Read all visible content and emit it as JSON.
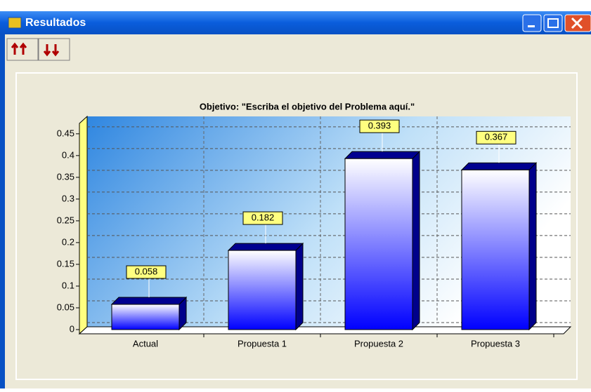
{
  "window": {
    "title": "Resultados"
  },
  "chart_data": {
    "type": "bar",
    "title": "Objetivo: \"Escriba el objetivo del Problema aquí.\"",
    "categories": [
      "Actual",
      "Propuesta 1",
      "Propuesta 2",
      "Propuesta 3"
    ],
    "values": [
      0.058,
      0.182,
      0.393,
      0.367
    ],
    "color": "#0000ff",
    "ylim": [
      0,
      0.49
    ],
    "yticks": [
      0,
      0.05,
      0.1,
      0.15,
      0.2,
      0.25,
      0.3,
      0.35,
      0.4,
      0.45
    ],
    "grid": true
  }
}
